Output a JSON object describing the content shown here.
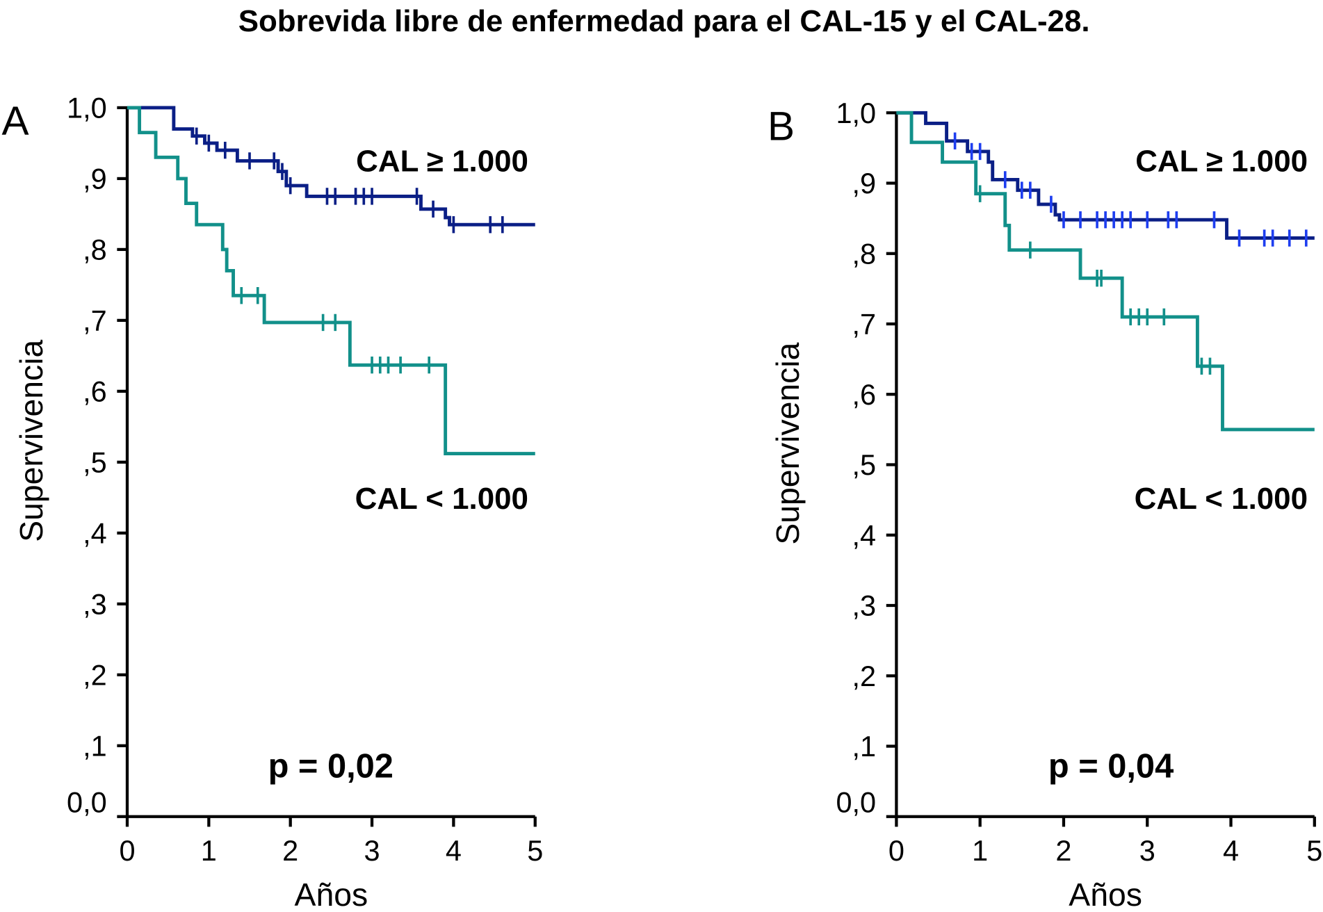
{
  "title": "Sobrevida libre de enfermedad para el CAL-15 y el CAL-28.",
  "colors": {
    "high": "#0b1f86",
    "high_censor_B": "#1e3ef0",
    "low": "#12908a",
    "axis": "#000000"
  },
  "chart_data": [
    {
      "type": "line",
      "panel": "A",
      "xlabel": "Años",
      "ylabel": "Supervivencia",
      "xlim": [
        0,
        5
      ],
      "ylim": [
        0,
        1
      ],
      "xticks": [
        "0",
        "1",
        "2",
        "3",
        "4",
        "5"
      ],
      "yticks": [
        "0,0",
        ",1",
        ",2",
        ",3",
        ",4",
        ",5",
        ",6",
        ",7",
        ",8",
        ",9",
        "1,0"
      ],
      "grid": false,
      "annotations": {
        "high_label": "CAL ≥ 1.000",
        "low_label": "CAL < 1.000",
        "p_value": "p = 0,02"
      },
      "series": [
        {
          "name": "CAL ≥ 1.000",
          "color_key": "high",
          "steps": [
            [
              0,
              1.0
            ],
            [
              0.57,
              0.97
            ],
            [
              0.8,
              0.96
            ],
            [
              0.95,
              0.95
            ],
            [
              1.1,
              0.94
            ],
            [
              1.35,
              0.925
            ],
            [
              1.85,
              0.91
            ],
            [
              1.95,
              0.89
            ],
            [
              2.2,
              0.875
            ],
            [
              3.6,
              0.857
            ],
            [
              3.9,
              0.845
            ],
            [
              3.95,
              0.835
            ],
            [
              5,
              0.835
            ]
          ],
          "censored": [
            0.85,
            1.0,
            1.2,
            1.5,
            1.8,
            1.9,
            2.0,
            2.45,
            2.55,
            2.8,
            2.9,
            3.0,
            3.55,
            3.75,
            4.0,
            4.45,
            4.6
          ]
        },
        {
          "name": "CAL < 1.000",
          "color_key": "low",
          "steps": [
            [
              0,
              1.0
            ],
            [
              0.15,
              0.965
            ],
            [
              0.35,
              0.93
            ],
            [
              0.62,
              0.9
            ],
            [
              0.72,
              0.865
            ],
            [
              0.85,
              0.835
            ],
            [
              1.17,
              0.8
            ],
            [
              1.22,
              0.77
            ],
            [
              1.3,
              0.735
            ],
            [
              1.68,
              0.697
            ],
            [
              2.73,
              0.637
            ],
            [
              3.9,
              0.512
            ],
            [
              5,
              0.512
            ]
          ],
          "censored": [
            1.4,
            1.6,
            2.4,
            2.55,
            3.0,
            3.1,
            3.2,
            3.35,
            3.7
          ]
        }
      ]
    },
    {
      "type": "line",
      "panel": "B",
      "xlabel": "Años",
      "ylabel": "Supervivencia",
      "xlim": [
        0,
        5
      ],
      "ylim": [
        0,
        1
      ],
      "xticks": [
        "0",
        "1",
        "2",
        "3",
        "4",
        "5"
      ],
      "yticks": [
        "0,0",
        ",1",
        ",2",
        ",3",
        ",4",
        ",5",
        ",6",
        ",7",
        ",8",
        ",9",
        "1,0"
      ],
      "grid": false,
      "annotations": {
        "high_label": "CAL ≥ 1.000",
        "low_label": "CAL < 1.000",
        "p_value": "p = 0,04"
      },
      "series": [
        {
          "name": "CAL ≥ 1.000",
          "color_key": "high",
          "censor_color_key": "high_censor_B",
          "steps": [
            [
              0,
              1.0
            ],
            [
              0.35,
              0.985
            ],
            [
              0.6,
              0.96
            ],
            [
              0.85,
              0.945
            ],
            [
              1.1,
              0.93
            ],
            [
              1.15,
              0.905
            ],
            [
              1.45,
              0.89
            ],
            [
              1.7,
              0.87
            ],
            [
              1.9,
              0.855
            ],
            [
              1.95,
              0.848
            ],
            [
              3.95,
              0.822
            ],
            [
              5,
              0.822
            ]
          ],
          "censored": [
            0.7,
            0.9,
            1.0,
            1.3,
            1.5,
            1.6,
            1.85,
            2.0,
            2.2,
            2.4,
            2.5,
            2.6,
            2.7,
            2.8,
            3.0,
            3.25,
            3.35,
            3.8,
            4.1,
            4.4,
            4.5,
            4.7,
            4.9
          ]
        },
        {
          "name": "CAL < 1.000",
          "color_key": "low",
          "steps": [
            [
              0,
              1.0
            ],
            [
              0.18,
              0.958
            ],
            [
              0.55,
              0.93
            ],
            [
              0.95,
              0.885
            ],
            [
              1.3,
              0.84
            ],
            [
              1.35,
              0.805
            ],
            [
              2.2,
              0.765
            ],
            [
              2.7,
              0.71
            ],
            [
              3.6,
              0.64
            ],
            [
              3.9,
              0.55
            ],
            [
              5,
              0.55
            ]
          ],
          "censored": [
            1.0,
            1.6,
            2.4,
            2.45,
            2.8,
            2.9,
            3.0,
            3.2,
            3.65,
            3.75
          ]
        }
      ]
    }
  ]
}
